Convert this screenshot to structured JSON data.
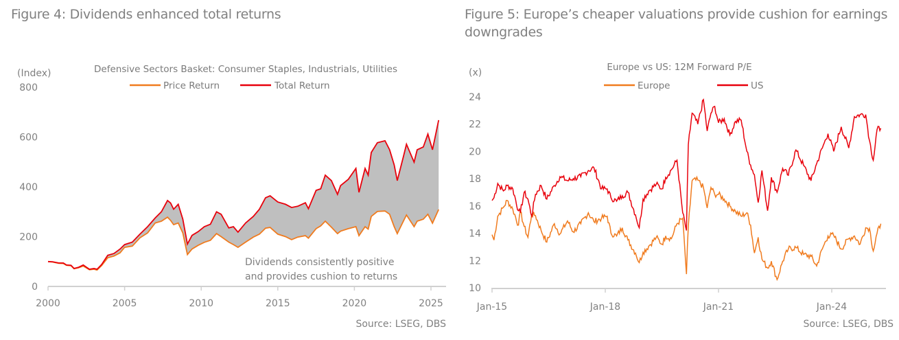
{
  "figures": {
    "left_title": "Figure 4: Dividends enhanced total returns",
    "right_title": "Figure 5: Europe’s cheaper valuations provide cushion for earnings downgrades",
    "left_source": "Source: LSEG, DBS",
    "right_source": "Source: LSEG, DBS"
  },
  "colors": {
    "price_return": "#f07b1e",
    "total_return": "#e8000b",
    "europe": "#f07b1e",
    "us": "#e8000b",
    "fill": "#bfbfbf",
    "axis": "#d0d0d0"
  },
  "chart_data": [
    {
      "type": "area",
      "title": "Defensive Sectors Basket: Consumer Staples, Industrials, Utilities",
      "ylabel": "(Index)",
      "xlabel": "",
      "ylim": [
        0,
        800
      ],
      "xlim": [
        2000,
        2025.6
      ],
      "yticks": [
        "0",
        "200",
        "400",
        "600",
        "800"
      ],
      "xticks": [
        "2000",
        "2005",
        "2010",
        "2015",
        "2020",
        "2025"
      ],
      "legend": "top-center",
      "grid": false,
      "annotation": [
        "Dividends consistently positive",
        "and provides cushion to returns"
      ],
      "fill_between": "Price Return and Total Return",
      "x": [
        2000.0,
        2000.3,
        2000.7,
        2001.0,
        2001.2,
        2001.5,
        2001.7,
        2002.0,
        2002.3,
        2002.7,
        2003.0,
        2003.2,
        2003.5,
        2003.9,
        2004.3,
        2004.7,
        2005.0,
        2005.5,
        2006.0,
        2006.5,
        2007.0,
        2007.4,
        2007.8,
        2008.0,
        2008.2,
        2008.5,
        2008.8,
        2009.1,
        2009.4,
        2009.8,
        2010.2,
        2010.6,
        2011.0,
        2011.3,
        2011.8,
        2012.1,
        2012.4,
        2012.9,
        2013.4,
        2013.8,
        2014.2,
        2014.5,
        2015.0,
        2015.5,
        2015.9,
        2016.3,
        2016.8,
        2017.0,
        2017.5,
        2017.8,
        2018.1,
        2018.5,
        2018.9,
        2019.1,
        2019.6,
        2020.1,
        2020.3,
        2020.7,
        2020.9,
        2021.1,
        2021.5,
        2022.0,
        2022.3,
        2022.6,
        2022.8,
        2023.2,
        2023.4,
        2023.9,
        2024.1,
        2024.5,
        2024.8,
        2025.1,
        2025.5
      ],
      "series": [
        {
          "name": "Price Return",
          "values": [
            100,
            98,
            93,
            92,
            85,
            83,
            71,
            75,
            82,
            67,
            69,
            66,
            84,
            115,
            122,
            135,
            157,
            162,
            195,
            215,
            255,
            262,
            278,
            265,
            248,
            255,
            215,
            128,
            150,
            165,
            177,
            185,
            212,
            200,
            178,
            168,
            157,
            178,
            198,
            210,
            234,
            237,
            210,
            200,
            188,
            198,
            204,
            194,
            232,
            243,
            262,
            238,
            212,
            222,
            232,
            240,
            204,
            240,
            230,
            281,
            301,
            303,
            290,
            240,
            212,
            262,
            287,
            240,
            262,
            270,
            290,
            254,
            309
          ]
        },
        {
          "name": "Total Return",
          "values": [
            100,
            99,
            94,
            94,
            86,
            85,
            72,
            77,
            86,
            69,
            72,
            69,
            88,
            125,
            132,
            150,
            168,
            178,
            210,
            240,
            275,
            300,
            345,
            335,
            310,
            330,
            270,
            170,
            205,
            220,
            240,
            250,
            300,
            290,
            235,
            240,
            218,
            255,
            281,
            310,
            356,
            364,
            339,
            330,
            317,
            322,
            336,
            312,
            386,
            392,
            447,
            425,
            370,
            405,
            430,
            474,
            378,
            474,
            447,
            538,
            577,
            585,
            549,
            488,
            425,
            521,
            571,
            499,
            549,
            560,
            612,
            549,
            668
          ]
        }
      ]
    },
    {
      "type": "line",
      "title": "Europe vs US: 12M Forward P/E",
      "ylabel": "(x)",
      "xlabel": "",
      "ylim": [
        10,
        24
      ],
      "xlim": [
        "Jan-15",
        "Jun-25"
      ],
      "yticks": [
        "10",
        "12",
        "14",
        "16",
        "18",
        "20",
        "22",
        "24"
      ],
      "xticks": [
        "Jan-15",
        "Jan-18",
        "Jan-21",
        "Jan-24"
      ],
      "legend": "top-center",
      "grid": false,
      "x_years_since_jan15": [
        0.0,
        0.05,
        0.15,
        0.3,
        0.4,
        0.55,
        0.7,
        0.75,
        0.85,
        0.95,
        1.05,
        1.15,
        1.3,
        1.45,
        1.65,
        1.8,
        2.0,
        2.15,
        2.35,
        2.55,
        2.7,
        2.9,
        3.05,
        3.15,
        3.3,
        3.45,
        3.6,
        3.8,
        3.9,
        4.0,
        4.15,
        4.35,
        4.5,
        4.6,
        4.75,
        4.9,
        5.05,
        5.15,
        5.2,
        5.3,
        5.45,
        5.6,
        5.7,
        5.8,
        5.9,
        6.0,
        6.15,
        6.3,
        6.45,
        6.6,
        6.75,
        6.85,
        6.95,
        7.05,
        7.15,
        7.3,
        7.4,
        7.55,
        7.7,
        7.85,
        8.05,
        8.25,
        8.45,
        8.6,
        8.75,
        8.9,
        9.05,
        9.25,
        9.45,
        9.6,
        9.75,
        9.9,
        10.0,
        10.1,
        10.2,
        10.3
      ],
      "series": [
        {
          "name": "Europe",
          "values": [
            13.9,
            13.5,
            15.25,
            15.9,
            16.4,
            15.75,
            14.6,
            15.6,
            14.5,
            13.7,
            15.4,
            15.3,
            14.2,
            13.35,
            14.7,
            13.95,
            14.9,
            14.1,
            14.7,
            15.5,
            14.85,
            15.1,
            15.25,
            14.0,
            13.8,
            14.4,
            13.5,
            12.55,
            11.85,
            12.6,
            13.05,
            13.7,
            13.2,
            13.8,
            13.6,
            14.7,
            15.1,
            11.0,
            14.5,
            17.85,
            17.9,
            17.35,
            15.85,
            17.35,
            16.85,
            16.85,
            16.5,
            16.0,
            15.6,
            15.25,
            15.5,
            14.6,
            12.55,
            13.7,
            12.1,
            11.45,
            11.95,
            10.6,
            11.95,
            12.85,
            12.95,
            12.45,
            12.3,
            11.6,
            12.85,
            13.8,
            13.85,
            12.85,
            13.6,
            13.8,
            13.2,
            14.4,
            14.35,
            12.7,
            14.0,
            14.7
          ]
        },
        {
          "name": "US",
          "values": [
            16.4,
            16.6,
            17.65,
            17.1,
            17.5,
            17.25,
            15.65,
            15.5,
            17.0,
            16.5,
            15.25,
            16.85,
            17.5,
            16.5,
            17.5,
            18.15,
            17.85,
            18.0,
            18.15,
            18.6,
            18.8,
            17.25,
            17.25,
            16.6,
            16.35,
            16.75,
            17.0,
            15.35,
            14.4,
            16.5,
            17.1,
            17.6,
            17.25,
            18.1,
            18.65,
            19.35,
            15.5,
            14.2,
            20.5,
            22.8,
            22.0,
            23.8,
            21.5,
            22.8,
            23.3,
            22.1,
            22.4,
            21.2,
            22.2,
            22.3,
            20.0,
            19.0,
            18.3,
            16.25,
            18.6,
            15.65,
            18.1,
            17.0,
            18.75,
            18.25,
            20.1,
            19.0,
            17.85,
            19.1,
            20.25,
            21.3,
            20.0,
            21.8,
            20.25,
            22.55,
            22.7,
            22.7,
            20.8,
            19.35,
            21.6,
            21.7
          ]
        }
      ]
    }
  ]
}
